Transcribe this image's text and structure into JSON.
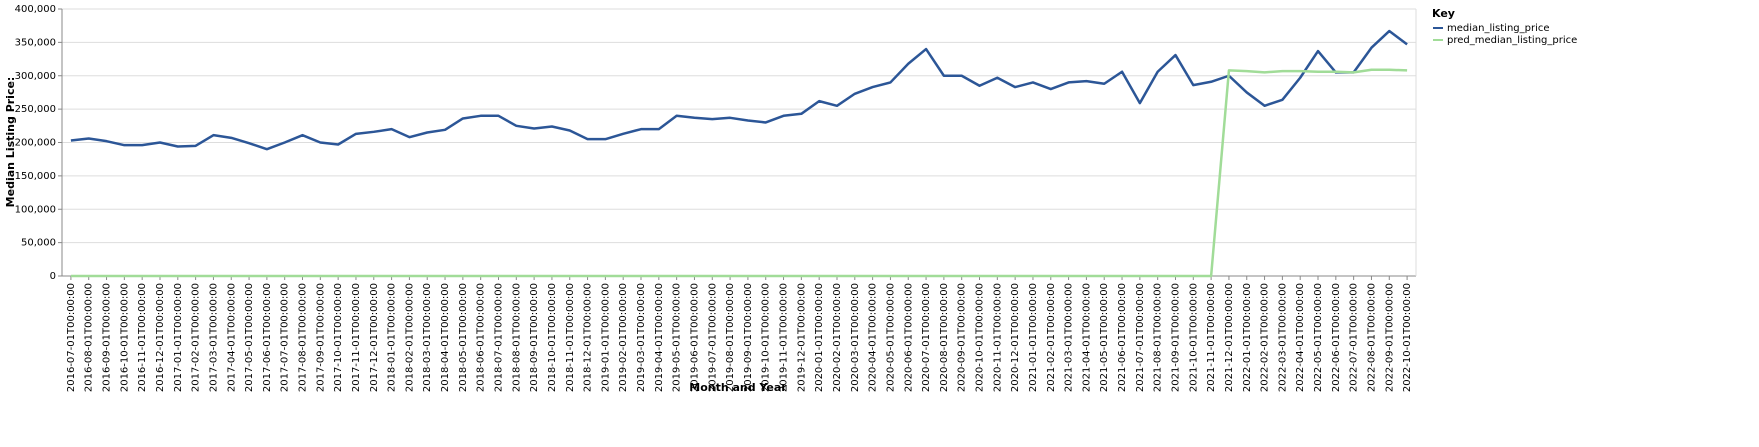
{
  "chart_data": {
    "type": "line",
    "x_label": "Month and Year",
    "y_label": "Median Listing Price:",
    "legend_title": "Key",
    "legend_position": "right",
    "grid": true,
    "categories": [
      "2016-07-01T00:00:00",
      "2016-08-01T00:00:00",
      "2016-09-01T00:00:00",
      "2016-10-01T00:00:00",
      "2016-11-01T00:00:00",
      "2016-12-01T00:00:00",
      "2017-01-01T00:00:00",
      "2017-02-01T00:00:00",
      "2017-03-01T00:00:00",
      "2017-04-01T00:00:00",
      "2017-05-01T00:00:00",
      "2017-06-01T00:00:00",
      "2017-07-01T00:00:00",
      "2017-08-01T00:00:00",
      "2017-09-01T00:00:00",
      "2017-10-01T00:00:00",
      "2017-11-01T00:00:00",
      "2017-12-01T00:00:00",
      "2018-01-01T00:00:00",
      "2018-02-01T00:00:00",
      "2018-03-01T00:00:00",
      "2018-04-01T00:00:00",
      "2018-05-01T00:00:00",
      "2018-06-01T00:00:00",
      "2018-07-01T00:00:00",
      "2018-08-01T00:00:00",
      "2018-09-01T00:00:00",
      "2018-10-01T00:00:00",
      "2018-11-01T00:00:00",
      "2018-12-01T00:00:00",
      "2019-01-01T00:00:00",
      "2019-02-01T00:00:00",
      "2019-03-01T00:00:00",
      "2019-04-01T00:00:00",
      "2019-05-01T00:00:00",
      "2019-06-01T00:00:00",
      "2019-07-01T00:00:00",
      "2019-08-01T00:00:00",
      "2019-09-01T00:00:00",
      "2019-10-01T00:00:00",
      "2019-11-01T00:00:00",
      "2019-12-01T00:00:00",
      "2020-01-01T00:00:00",
      "2020-02-01T00:00:00",
      "2020-03-01T00:00:00",
      "2020-04-01T00:00:00",
      "2020-05-01T00:00:00",
      "2020-06-01T00:00:00",
      "2020-07-01T00:00:00",
      "2020-08-01T00:00:00",
      "2020-09-01T00:00:00",
      "2020-10-01T00:00:00",
      "2020-11-01T00:00:00",
      "2020-12-01T00:00:00",
      "2021-01-01T00:00:00",
      "2021-02-01T00:00:00",
      "2021-03-01T00:00:00",
      "2021-04-01T00:00:00",
      "2021-05-01T00:00:00",
      "2021-06-01T00:00:00",
      "2021-07-01T00:00:00",
      "2021-08-01T00:00:00",
      "2021-09-01T00:00:00",
      "2021-10-01T00:00:00",
      "2021-11-01T00:00:00",
      "2021-12-01T00:00:00",
      "2022-01-01T00:00:00",
      "2022-02-01T00:00:00",
      "2022-03-01T00:00:00",
      "2022-04-01T00:00:00",
      "2022-05-01T00:00:00",
      "2022-06-01T00:00:00",
      "2022-07-01T00:00:00",
      "2022-08-01T00:00:00",
      "2022-09-01T00:00:00",
      "2022-10-01T00:00:00"
    ],
    "series": [
      {
        "name": "median_listing_price",
        "color": "#2c5697",
        "values": [
          203000,
          206000,
          202000,
          196000,
          196000,
          200000,
          194000,
          195000,
          211000,
          207000,
          199000,
          190000,
          200000,
          211000,
          200000,
          197000,
          213000,
          216000,
          220000,
          208000,
          215000,
          219000,
          236000,
          240000,
          240000,
          225000,
          221000,
          224000,
          218000,
          205000,
          205000,
          213000,
          220000,
          220000,
          240000,
          237000,
          235000,
          237000,
          233000,
          230000,
          240000,
          243000,
          262000,
          255000,
          273000,
          283000,
          290000,
          318000,
          340000,
          300000,
          300000,
          285000,
          297000,
          283000,
          290000,
          280000,
          290000,
          292000,
          288000,
          306000,
          259000,
          306000,
          331000,
          286000,
          291000,
          300000,
          275000,
          255000,
          264000,
          297000,
          337000,
          305000,
          305000,
          342000,
          367000,
          347000
        ]
      },
      {
        "name": "pred_median_listing_price",
        "color": "#a1dc98",
        "values": [
          0,
          0,
          0,
          0,
          0,
          0,
          0,
          0,
          0,
          0,
          0,
          0,
          0,
          0,
          0,
          0,
          0,
          0,
          0,
          0,
          0,
          0,
          0,
          0,
          0,
          0,
          0,
          0,
          0,
          0,
          0,
          0,
          0,
          0,
          0,
          0,
          0,
          0,
          0,
          0,
          0,
          0,
          0,
          0,
          0,
          0,
          0,
          0,
          0,
          0,
          0,
          0,
          0,
          0,
          0,
          0,
          0,
          0,
          0,
          0,
          0,
          0,
          0,
          0,
          0,
          308000,
          307000,
          305000,
          307000,
          307000,
          306000,
          306000,
          305000,
          309000,
          309000,
          308000
        ]
      }
    ],
    "ylim": [
      0,
      400000
    ],
    "yticks": [
      0,
      {
        "value": 50000,
        "label": "50,000"
      },
      {
        "value": 100000,
        "label": "100,000"
      },
      {
        "value": 150000,
        "label": "150,000"
      },
      {
        "value": 200000,
        "label": "200,000"
      },
      {
        "value": 250000,
        "label": "250,000"
      },
      {
        "value": 300000,
        "label": "300,000"
      },
      {
        "value": 350000,
        "label": "350,000"
      },
      {
        "value": 400000,
        "label": "400,000"
      }
    ]
  }
}
